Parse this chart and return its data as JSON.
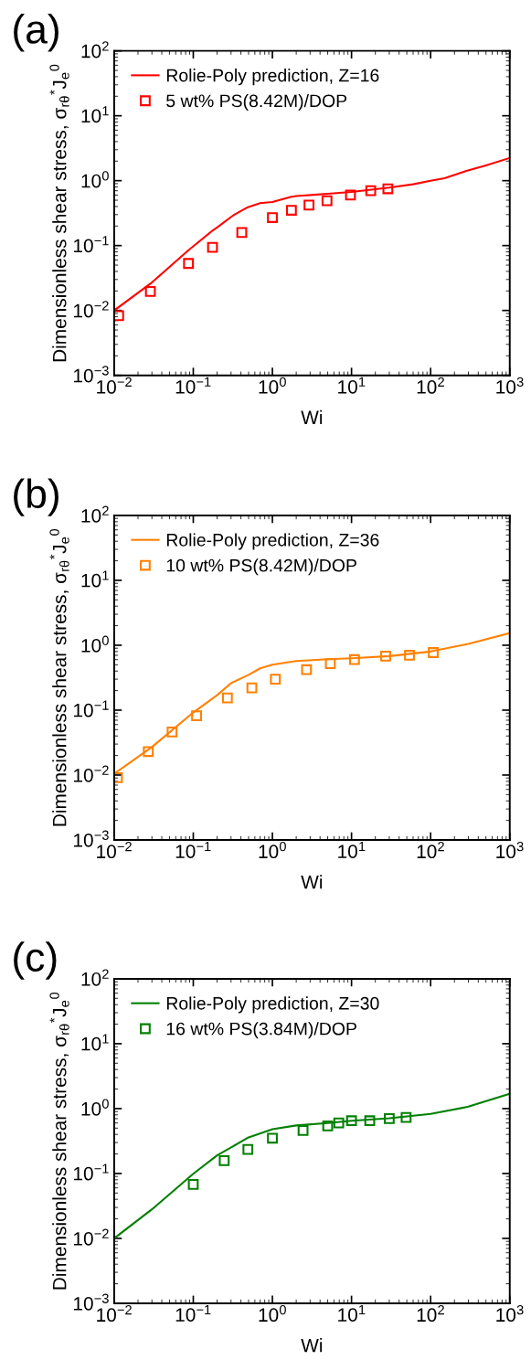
{
  "chart_data": [
    {
      "type": "line",
      "title": "(a)",
      "xlabel": "Wi",
      "ylabel": "Dimensionless shear stress, σ$_{rθ}$$^{*}$J$_{e}$$^{0}$",
      "log": "xy",
      "legend": "top left",
      "grid": false,
      "xlim": [
        0.01,
        1000
      ],
      "ylim": [
        0.001,
        100
      ],
      "xticks": [
        {
          "value": 0.01,
          "label": "10$^{−2}$"
        },
        {
          "value": 0.1,
          "label": "10$^{−1}$"
        },
        {
          "value": 1,
          "label": "10$^{0}$"
        },
        {
          "value": 10,
          "label": "10$^{1}$"
        },
        {
          "value": 100,
          "label": "10$^{2}$"
        },
        {
          "value": 1000,
          "label": "10$^{3}$"
        }
      ],
      "yticks": [
        {
          "value": 0.001,
          "label": "10$^{−3}$"
        },
        {
          "value": 0.01,
          "label": "10$^{−2}$"
        },
        {
          "value": 0.1,
          "label": "10$^{−1}$"
        },
        {
          "value": 1,
          "label": "10$^{0}$"
        },
        {
          "value": 10,
          "label": "10$^{1}$"
        },
        {
          "value": 100,
          "label": "10$^{2}$"
        }
      ],
      "series": [
        {
          "name": "Rolie-Poly prediction, Z=16",
          "color": "#ff0000",
          "marker": "none",
          "line_style": "solid",
          "x": [
            0.01,
            0.03,
            0.087,
            0.175,
            0.2,
            0.33,
            0.49,
            0.7,
            1.0,
            1.7,
            2,
            3.7,
            5,
            10,
            30,
            60,
            100,
            150,
            290,
            500,
            1000
          ],
          "values": [
            0.01,
            0.027,
            0.085,
            0.17,
            0.19,
            0.3,
            0.39,
            0.45,
            0.47,
            0.56,
            0.58,
            0.61,
            0.63,
            0.67,
            0.78,
            0.88,
            1.0,
            1.09,
            1.43,
            1.72,
            2.24
          ]
        },
        {
          "name": "5 wt% PS(8.42M)/DOP",
          "type": "scatter",
          "color": "#ff0000",
          "marker": "square",
          "x": [
            0.0114,
            0.0287,
            0.087,
            0.175,
            0.41,
            1.0,
            1.74,
            2.9,
            4.9,
            9.7,
            17.5,
            28.8
          ],
          "values": [
            0.0083,
            0.0196,
            0.053,
            0.094,
            0.159,
            0.27,
            0.35,
            0.42,
            0.49,
            0.6,
            0.7,
            0.75
          ]
        }
      ]
    },
    {
      "type": "line",
      "title": "(b)",
      "xlabel": "Wi",
      "ylabel": "Dimensionless shear stress, σ$_{rθ}$$^{*}$J$_{e}$$^{0}$",
      "log": "xy",
      "legend": "top left",
      "grid": false,
      "xlim": [
        0.01,
        1000
      ],
      "ylim": [
        0.001,
        100
      ],
      "xticks": [
        {
          "value": 0.01,
          "label": "10$^{−2}$"
        },
        {
          "value": 0.1,
          "label": "10$^{−1}$"
        },
        {
          "value": 1,
          "label": "10$^{0}$"
        },
        {
          "value": 10,
          "label": "10$^{1}$"
        },
        {
          "value": 100,
          "label": "10$^{2}$"
        },
        {
          "value": 1000,
          "label": "10$^{3}$"
        }
      ],
      "yticks": [
        {
          "value": 0.001,
          "label": "10$^{−3}$"
        },
        {
          "value": 0.01,
          "label": "10$^{−2}$"
        },
        {
          "value": 0.1,
          "label": "10$^{−1}$"
        },
        {
          "value": 1,
          "label": "10$^{0}$"
        },
        {
          "value": 10,
          "label": "10$^{1}$"
        },
        {
          "value": 100,
          "label": "10$^{2}$"
        }
      ],
      "series": [
        {
          "name": "Rolie-Poly prediction, Z=36",
          "color": "#ff8000",
          "marker": "none",
          "line_style": "solid",
          "x": [
            0.01,
            0.03,
            0.1,
            0.2,
            0.3,
            0.5,
            0.7,
            1,
            2,
            5,
            10,
            30,
            100,
            300,
            1000
          ],
          "values": [
            0.0105,
            0.027,
            0.092,
            0.17,
            0.26,
            0.35,
            0.44,
            0.5,
            0.57,
            0.61,
            0.63,
            0.68,
            0.8,
            1.05,
            1.54
          ]
        },
        {
          "name": "10 wt% PS(8.42M)/DOP",
          "type": "scatter",
          "color": "#ff8000",
          "marker": "square",
          "x": [
            0.011,
            0.027,
            0.054,
            0.11,
            0.27,
            0.55,
            1.09,
            2.7,
            5.4,
            10.9,
            27,
            54,
            108
          ],
          "values": [
            0.0091,
            0.023,
            0.046,
            0.082,
            0.154,
            0.22,
            0.3,
            0.42,
            0.52,
            0.6,
            0.68,
            0.7,
            0.77
          ]
        }
      ]
    },
    {
      "type": "line",
      "title": "(c)",
      "xlabel": "Wi",
      "ylabel": "Dimensionless shear stress, σ$_{rθ}$$^{*}$J$_{e}$$^{0}$",
      "log": "xy",
      "legend": "top left",
      "grid": false,
      "xlim": [
        0.01,
        1000
      ],
      "ylim": [
        0.001,
        100
      ],
      "xticks": [
        {
          "value": 0.01,
          "label": "10$^{−2}$"
        },
        {
          "value": 0.1,
          "label": "10$^{−1}$"
        },
        {
          "value": 1,
          "label": "10$^{0}$"
        },
        {
          "value": 10,
          "label": "10$^{1}$"
        },
        {
          "value": 100,
          "label": "10$^{2}$"
        },
        {
          "value": 1000,
          "label": "10$^{3}$"
        }
      ],
      "yticks": [
        {
          "value": 0.001,
          "label": "10$^{−3}$"
        },
        {
          "value": 0.01,
          "label": "10$^{−2}$"
        },
        {
          "value": 0.1,
          "label": "10$^{−1}$"
        },
        {
          "value": 1,
          "label": "10$^{0}$"
        },
        {
          "value": 10,
          "label": "10$^{1}$"
        },
        {
          "value": 100,
          "label": "10$^{2}$"
        }
      ],
      "series": [
        {
          "name": "Rolie-Poly prediction, Z=30",
          "color": "#008000",
          "marker": "none",
          "line_style": "solid",
          "x": [
            0.01,
            0.03,
            0.1,
            0.2,
            0.5,
            1,
            2,
            5,
            10,
            30,
            100,
            300,
            1000
          ],
          "values": [
            0.01,
            0.028,
            0.099,
            0.19,
            0.36,
            0.48,
            0.55,
            0.6,
            0.65,
            0.71,
            0.83,
            1.07,
            1.69
          ]
        },
        {
          "name": "16 wt% PS(3.84M)/DOP",
          "type": "scatter",
          "color": "#008000",
          "marker": "square",
          "x": [
            0.1,
            0.246,
            0.49,
            1.0,
            2.44,
            5.0,
            6.9,
            10,
            17,
            30,
            49
          ],
          "values": [
            0.068,
            0.158,
            0.235,
            0.35,
            0.46,
            0.54,
            0.6,
            0.65,
            0.65,
            0.7,
            0.73
          ]
        }
      ]
    }
  ]
}
